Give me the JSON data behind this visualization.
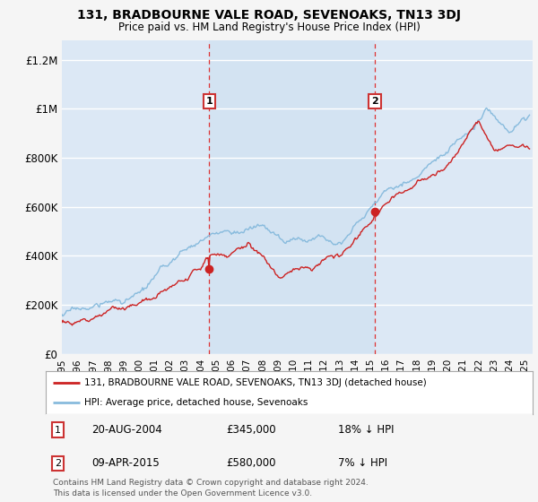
{
  "title": "131, BRADBOURNE VALE ROAD, SEVENOAKS, TN13 3DJ",
  "subtitle": "Price paid vs. HM Land Registry's House Price Index (HPI)",
  "background_color": "#f5f5f5",
  "plot_bg_color": "#dce8f5",
  "highlight_bg_color": "#cce0f0",
  "grid_color": "#ffffff",
  "hpi_color": "#88bbdd",
  "price_color": "#cc2222",
  "vline_color": "#dd3333",
  "sale1_date_num": 2004.55,
  "sale1_price": 345000,
  "sale1_label": "1",
  "sale2_date_num": 2015.27,
  "sale2_price": 580000,
  "sale2_label": "2",
  "ylim": [
    0,
    1280000
  ],
  "yticks": [
    0,
    200000,
    400000,
    600000,
    800000,
    1000000,
    1200000
  ],
  "ytick_labels": [
    "£0",
    "£200K",
    "£400K",
    "£600K",
    "£800K",
    "£1M",
    "£1.2M"
  ],
  "xlim_start": 1995.0,
  "xlim_end": 2025.5,
  "legend_line1": "131, BRADBOURNE VALE ROAD, SEVENOAKS, TN13 3DJ (detached house)",
  "legend_line2": "HPI: Average price, detached house, Sevenoaks",
  "footer": "Contains HM Land Registry data © Crown copyright and database right 2024.\nThis data is licensed under the Open Government Licence v3.0."
}
